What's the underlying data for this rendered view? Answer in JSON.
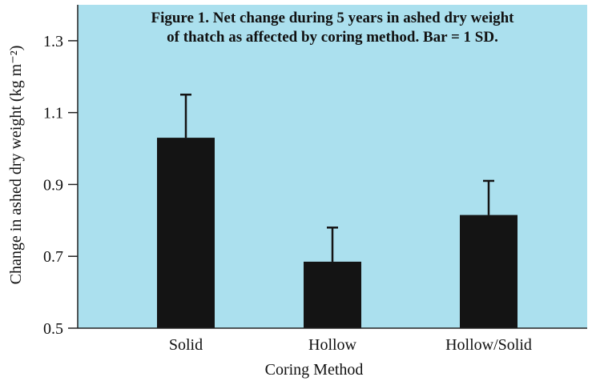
{
  "chart_data": {
    "type": "bar",
    "title_lines": [
      "Figure 1. Net change during 5 years in ashed dry weight",
      "of thatch as affected by coring method. Bar = 1 SD."
    ],
    "xlabel": "Coring Method",
    "ylabel": "Change in ashed dry weight (kg m⁻²)",
    "categories": [
      "Solid",
      "Hollow",
      "Hollow/Solid"
    ],
    "values": [
      1.03,
      0.685,
      0.815
    ],
    "error_sd": [
      0.12,
      0.095,
      0.095
    ],
    "ylim": [
      0.5,
      1.4
    ],
    "yticks": [
      0.5,
      0.7,
      0.9,
      1.1,
      1.3
    ],
    "ytick_labels": [
      "0.5",
      "0.7",
      "0.9",
      "1.1",
      "1.3"
    ],
    "grid": false,
    "colors": {
      "plot_background": "#abe0ee",
      "bar_fill": "#141414",
      "axis": "#222222",
      "text": "#111111"
    }
  }
}
